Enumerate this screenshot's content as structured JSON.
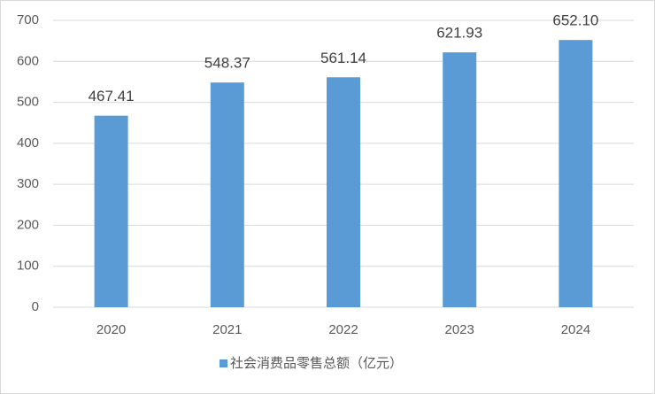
{
  "chart_data": {
    "type": "bar",
    "categories": [
      "2020",
      "2021",
      "2022",
      "2023",
      "2024"
    ],
    "series": [
      {
        "name": "社会消费品零售总额（亿元）",
        "color": "#5b9bd5",
        "values": [
          467.41,
          548.37,
          561.14,
          621.93,
          652.1
        ],
        "value_labels": [
          "467.41",
          "548.37",
          "561.14",
          "621.93",
          "652.10"
        ]
      }
    ],
    "ylim": [
      0,
      700
    ],
    "yticks": [
      0,
      100,
      200,
      300,
      400,
      500,
      600,
      700
    ],
    "grid": true,
    "legend": "bottom"
  }
}
